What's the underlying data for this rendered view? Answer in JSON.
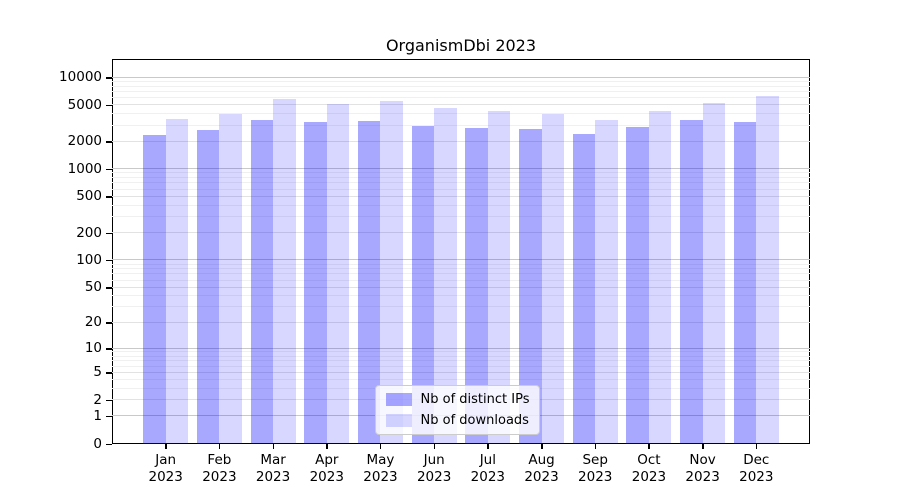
{
  "chart_data": {
    "type": "bar",
    "title": "OrganismDbi 2023",
    "year": "2023",
    "categories": [
      "Jan",
      "Feb",
      "Mar",
      "Apr",
      "May",
      "Jun",
      "Jul",
      "Aug",
      "Sep",
      "Oct",
      "Nov",
      "Dec"
    ],
    "series": [
      {
        "name": "Nb of distinct IPs",
        "color": "rgba(0,0,255,0.34)",
        "values": [
          2350,
          2700,
          3450,
          3250,
          3400,
          2950,
          2850,
          2750,
          2450,
          2900,
          3450,
          3300
        ]
      },
      {
        "name": "Nb of downloads",
        "color": "rgba(0,0,255,0.155)",
        "values": [
          3550,
          4000,
          5900,
          5200,
          5550,
          4700,
          4300,
          4000,
          3450,
          4300,
          5350,
          6300
        ]
      }
    ],
    "y_scale": "log10(1+x)",
    "ylim": [
      0,
      16000
    ],
    "xlim": [
      -1,
      12
    ],
    "bar_width_frac": 0.419,
    "y_ticks": [
      10000,
      5000,
      2000,
      1000,
      500,
      200,
      100,
      50,
      20,
      10,
      5,
      2,
      1,
      0
    ],
    "y_minor_ticks": [
      3,
      4,
      6,
      7,
      8,
      9,
      30,
      40,
      60,
      70,
      80,
      90,
      300,
      400,
      600,
      700,
      800,
      900,
      3000,
      4000,
      6000,
      7000,
      8000,
      9000
    ],
    "y_decades": [
      1,
      10,
      100,
      1000,
      10000
    ],
    "grid": true,
    "legend_position": "bottom-center",
    "colors": {
      "grid_minor": "#f0f0f0",
      "grid_major": "#e2e2e2",
      "grid_decade": "#c9c9c9",
      "axis": "#000000",
      "text": "#000000",
      "background": "#ffffff"
    }
  }
}
